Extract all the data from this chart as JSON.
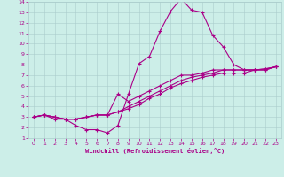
{
  "xlabel": "Windchill (Refroidissement éolien,°C)",
  "background_color": "#cceee8",
  "line_color": "#aa0088",
  "grid_color": "#aacccc",
  "xlim": [
    -0.5,
    23.5
  ],
  "ylim": [
    1,
    14
  ],
  "xticks": [
    0,
    1,
    2,
    3,
    4,
    5,
    6,
    7,
    8,
    9,
    10,
    11,
    12,
    13,
    14,
    15,
    16,
    17,
    18,
    19,
    20,
    21,
    22,
    23
  ],
  "yticks": [
    1,
    2,
    3,
    4,
    5,
    6,
    7,
    8,
    9,
    10,
    11,
    12,
    13,
    14
  ],
  "s1_x": [
    0,
    1,
    2,
    3,
    4,
    5,
    6,
    7,
    8,
    9,
    10,
    11,
    12,
    13,
    14,
    15,
    16,
    17,
    18,
    19,
    20,
    21,
    22,
    23
  ],
  "s1_y": [
    3.0,
    3.2,
    2.8,
    2.8,
    2.2,
    1.8,
    1.8,
    1.5,
    2.2,
    5.2,
    8.1,
    8.8,
    11.2,
    13.1,
    14.3,
    13.2,
    13.0,
    10.8,
    9.7,
    8.0,
    7.5,
    7.5,
    7.6,
    7.8
  ],
  "s2_x": [
    0,
    1,
    2,
    3,
    4,
    5,
    6,
    7,
    8,
    9,
    10,
    11,
    12,
    13,
    14,
    15,
    16,
    17,
    18,
    19,
    20,
    21,
    22,
    23
  ],
  "s2_y": [
    3.0,
    3.2,
    3.0,
    2.8,
    2.8,
    3.0,
    3.2,
    3.2,
    5.2,
    4.5,
    5.0,
    5.5,
    6.0,
    6.5,
    7.0,
    7.0,
    7.2,
    7.5,
    7.5,
    7.5,
    7.5,
    7.5,
    7.6,
    7.8
  ],
  "s3_x": [
    0,
    1,
    2,
    3,
    4,
    5,
    6,
    7,
    8,
    9,
    10,
    11,
    12,
    13,
    14,
    15,
    16,
    17,
    18,
    19,
    20,
    21,
    22,
    23
  ],
  "s3_y": [
    3.0,
    3.2,
    3.0,
    2.8,
    2.8,
    3.0,
    3.2,
    3.2,
    3.5,
    4.0,
    4.5,
    5.0,
    5.5,
    6.0,
    6.5,
    6.8,
    7.0,
    7.2,
    7.5,
    7.5,
    7.5,
    7.5,
    7.5,
    7.8
  ],
  "s4_x": [
    0,
    1,
    2,
    3,
    4,
    5,
    6,
    7,
    8,
    9,
    10,
    11,
    12,
    13,
    14,
    15,
    16,
    17,
    18,
    19,
    20,
    21,
    22,
    23
  ],
  "s4_y": [
    3.0,
    3.2,
    3.0,
    2.8,
    2.8,
    3.0,
    3.2,
    3.2,
    3.5,
    3.8,
    4.2,
    4.8,
    5.2,
    5.8,
    6.2,
    6.5,
    6.8,
    7.0,
    7.2,
    7.2,
    7.2,
    7.5,
    7.5,
    7.8
  ]
}
